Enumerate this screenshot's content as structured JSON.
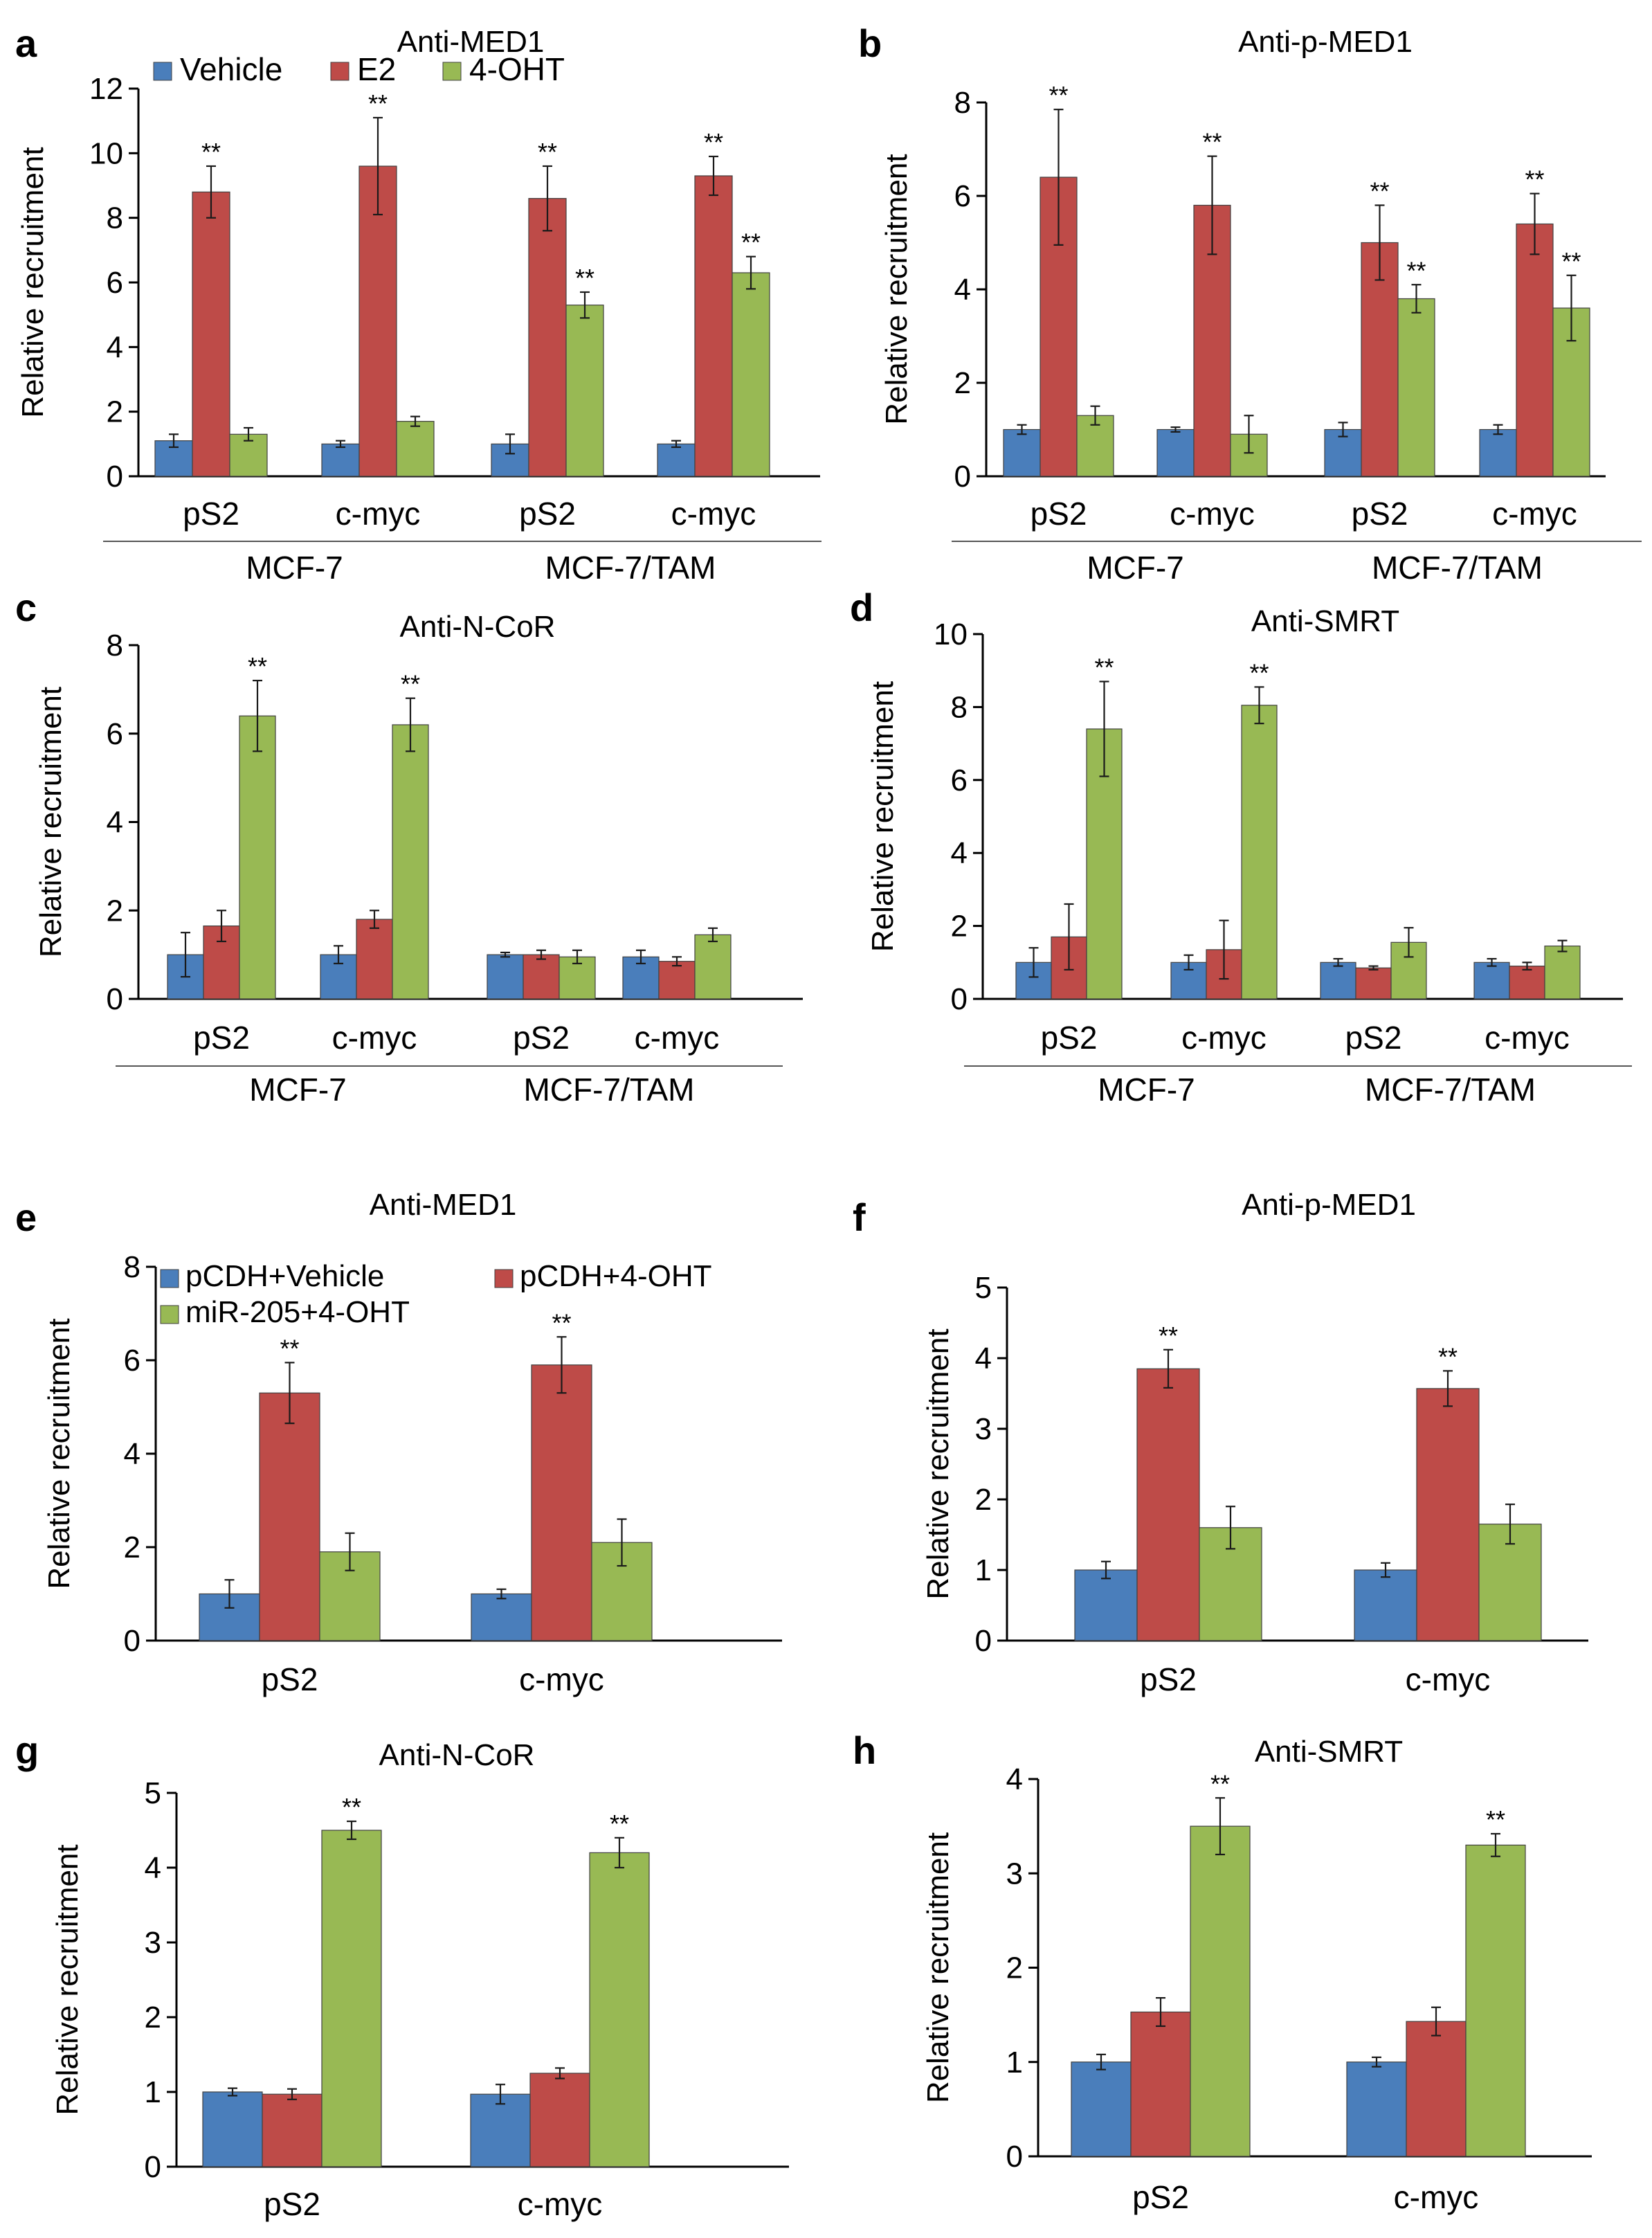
{
  "figure": {
    "ylabel": "Relative recruitment",
    "significance_marker": "**"
  },
  "colors": {
    "series": [
      "#4a7ebb",
      "#be4b48",
      "#98b954"
    ],
    "axis": "#000000",
    "error_bar": "#1a1a1a"
  },
  "chart_data": [
    {
      "panel": "a",
      "type": "bar",
      "title": "Anti-MED1",
      "ylabel": "Relative recruitment",
      "ylim": [
        0,
        12
      ],
      "yticks": [
        0,
        2,
        4,
        6,
        8,
        10,
        12
      ],
      "categories": [
        "pS2",
        "c-myc",
        "pS2",
        "c-myc"
      ],
      "groups": [
        {
          "label": "MCF-7",
          "span": [
            0,
            1
          ]
        },
        {
          "label": "MCF-7/TAM",
          "span": [
            2,
            3
          ]
        }
      ],
      "legend": {
        "placement": "top-left",
        "columns": 3
      },
      "series": [
        {
          "name": "Vehicle",
          "values": [
            1.1,
            1.0,
            1.0,
            1.0
          ],
          "errors": [
            0.2,
            0.1,
            0.3,
            0.1
          ],
          "sig": [
            false,
            false,
            false,
            false
          ]
        },
        {
          "name": "E2",
          "values": [
            8.8,
            9.6,
            8.6,
            9.3
          ],
          "errors": [
            0.8,
            1.5,
            1.0,
            0.6
          ],
          "sig": [
            true,
            true,
            true,
            true
          ]
        },
        {
          "name": "4-OHT",
          "values": [
            1.3,
            1.7,
            5.3,
            6.3
          ],
          "errors": [
            0.2,
            0.15,
            0.4,
            0.5
          ],
          "sig": [
            false,
            false,
            true,
            true
          ]
        }
      ]
    },
    {
      "panel": "b",
      "type": "bar",
      "title": "Anti-p-MED1",
      "ylabel": "Relative recruitment",
      "ylim": [
        0,
        8
      ],
      "yticks": [
        0,
        2,
        4,
        6,
        8
      ],
      "categories": [
        "pS2",
        "c-myc",
        "pS2",
        "c-myc"
      ],
      "groups": [
        {
          "label": "MCF-7",
          "span": [
            0,
            1
          ]
        },
        {
          "label": "MCF-7/TAM",
          "span": [
            2,
            3
          ]
        }
      ],
      "series": [
        {
          "name": "Vehicle",
          "values": [
            1.0,
            1.0,
            1.0,
            1.0
          ],
          "errors": [
            0.1,
            0.05,
            0.15,
            0.1
          ],
          "sig": [
            false,
            false,
            false,
            false
          ]
        },
        {
          "name": "E2",
          "values": [
            6.4,
            5.8,
            5.0,
            5.4
          ],
          "errors": [
            1.45,
            1.05,
            0.8,
            0.65
          ],
          "sig": [
            true,
            true,
            true,
            true
          ]
        },
        {
          "name": "4-OHT",
          "values": [
            1.3,
            0.9,
            3.8,
            3.6
          ],
          "errors": [
            0.2,
            0.4,
            0.3,
            0.7
          ],
          "sig": [
            false,
            false,
            true,
            true
          ]
        }
      ]
    },
    {
      "panel": "c",
      "type": "bar",
      "title": "Anti-N-CoR",
      "ylabel": "Relative recruitment",
      "ylim": [
        0,
        8
      ],
      "yticks": [
        0,
        2,
        4,
        6,
        8
      ],
      "categories": [
        "pS2",
        "c-myc",
        "pS2",
        "c-myc"
      ],
      "groups": [
        {
          "label": "MCF-7",
          "span": [
            0,
            1
          ]
        },
        {
          "label": "MCF-7/TAM",
          "span": [
            2,
            3
          ]
        }
      ],
      "series": [
        {
          "name": "Vehicle",
          "values": [
            1.0,
            1.0,
            1.0,
            0.95
          ],
          "errors": [
            0.5,
            0.2,
            0.05,
            0.15
          ],
          "sig": [
            false,
            false,
            false,
            false
          ]
        },
        {
          "name": "E2",
          "values": [
            1.65,
            1.8,
            1.0,
            0.85
          ],
          "errors": [
            0.35,
            0.2,
            0.1,
            0.1
          ],
          "sig": [
            false,
            false,
            false,
            false
          ]
        },
        {
          "name": "4-OHT",
          "values": [
            6.4,
            6.2,
            0.95,
            1.45
          ],
          "errors": [
            0.8,
            0.6,
            0.15,
            0.15
          ],
          "sig": [
            true,
            true,
            false,
            false
          ]
        }
      ]
    },
    {
      "panel": "d",
      "type": "bar",
      "title": "Anti-SMRT",
      "ylabel": "Relative recruitment",
      "ylim": [
        0,
        10
      ],
      "yticks": [
        0,
        2,
        4,
        6,
        8,
        10
      ],
      "categories": [
        "pS2",
        "c-myc",
        "pS2",
        "c-myc"
      ],
      "groups": [
        {
          "label": "MCF-7",
          "span": [
            0,
            1
          ]
        },
        {
          "label": "MCF-7/TAM",
          "span": [
            2,
            3
          ]
        }
      ],
      "series": [
        {
          "name": "Vehicle",
          "values": [
            1.0,
            1.0,
            1.0,
            1.0
          ],
          "errors": [
            0.4,
            0.2,
            0.1,
            0.1
          ],
          "sig": [
            false,
            false,
            false,
            false
          ]
        },
        {
          "name": "E2",
          "values": [
            1.7,
            1.35,
            0.85,
            0.9
          ],
          "errors": [
            0.9,
            0.8,
            0.05,
            0.1
          ],
          "sig": [
            false,
            false,
            false,
            false
          ]
        },
        {
          "name": "4-OHT",
          "values": [
            7.4,
            8.05,
            1.55,
            1.45
          ],
          "errors": [
            1.3,
            0.5,
            0.4,
            0.15
          ],
          "sig": [
            true,
            true,
            false,
            false
          ]
        }
      ]
    },
    {
      "panel": "e",
      "type": "bar",
      "title": "Anti-MED1",
      "ylabel": "Relative recruitment",
      "ylim": [
        0,
        8
      ],
      "yticks": [
        0,
        2,
        4,
        6,
        8
      ],
      "categories": [
        "pS2",
        "c-myc"
      ],
      "legend": {
        "placement": "top-left",
        "columns": 2
      },
      "series": [
        {
          "name": "pCDH+Vehicle",
          "values": [
            1.0,
            1.0
          ],
          "errors": [
            0.3,
            0.1
          ],
          "sig": [
            false,
            false
          ]
        },
        {
          "name": "pCDH+4-OHT",
          "values": [
            5.3,
            5.9
          ],
          "errors": [
            0.65,
            0.6
          ],
          "sig": [
            true,
            true
          ]
        },
        {
          "name": "miR-205+4-OHT",
          "values": [
            1.9,
            2.1
          ],
          "errors": [
            0.4,
            0.5
          ],
          "sig": [
            false,
            false
          ]
        }
      ]
    },
    {
      "panel": "f",
      "type": "bar",
      "title": "Anti-p-MED1",
      "ylabel": "Relative recruitment",
      "ylim": [
        0,
        5
      ],
      "yticks": [
        0,
        1,
        2,
        3,
        4,
        5
      ],
      "categories": [
        "pS2",
        "c-myc"
      ],
      "series": [
        {
          "name": "pCDH+Vehicle",
          "values": [
            1.0,
            1.0
          ],
          "errors": [
            0.12,
            0.1
          ],
          "sig": [
            false,
            false
          ]
        },
        {
          "name": "pCDH+4-OHT",
          "values": [
            3.85,
            3.57
          ],
          "errors": [
            0.27,
            0.25
          ],
          "sig": [
            true,
            true
          ]
        },
        {
          "name": "miR-205+4-OHT",
          "values": [
            1.6,
            1.65
          ],
          "errors": [
            0.3,
            0.28
          ],
          "sig": [
            false,
            false
          ]
        }
      ]
    },
    {
      "panel": "g",
      "type": "bar",
      "title": "Anti-N-CoR",
      "ylabel": "Relative recruitment",
      "ylim": [
        0,
        5
      ],
      "yticks": [
        0,
        1,
        2,
        3,
        4,
        5
      ],
      "categories": [
        "pS2",
        "c-myc"
      ],
      "series": [
        {
          "name": "pCDH+Vehicle",
          "values": [
            1.0,
            0.97
          ],
          "errors": [
            0.05,
            0.13
          ],
          "sig": [
            false,
            false
          ]
        },
        {
          "name": "pCDH+4-OHT",
          "values": [
            0.97,
            1.25
          ],
          "errors": [
            0.07,
            0.07
          ],
          "sig": [
            false,
            false
          ]
        },
        {
          "name": "miR-205+4-OHT",
          "values": [
            4.5,
            4.2
          ],
          "errors": [
            0.12,
            0.2
          ],
          "sig": [
            true,
            true
          ]
        }
      ]
    },
    {
      "panel": "h",
      "type": "bar",
      "title": "Anti-SMRT",
      "ylabel": "Relative recruitment",
      "ylim": [
        0,
        4
      ],
      "yticks": [
        0,
        1,
        2,
        3,
        4
      ],
      "categories": [
        "pS2",
        "c-myc"
      ],
      "series": [
        {
          "name": "pCDH+Vehicle",
          "values": [
            1.0,
            1.0
          ],
          "errors": [
            0.08,
            0.05
          ],
          "sig": [
            false,
            false
          ]
        },
        {
          "name": "pCDH+4-OHT",
          "values": [
            1.53,
            1.43
          ],
          "errors": [
            0.15,
            0.15
          ],
          "sig": [
            false,
            false
          ]
        },
        {
          "name": "miR-205+4-OHT",
          "values": [
            3.5,
            3.3
          ],
          "errors": [
            0.3,
            0.12
          ],
          "sig": [
            true,
            true
          ]
        }
      ]
    }
  ]
}
